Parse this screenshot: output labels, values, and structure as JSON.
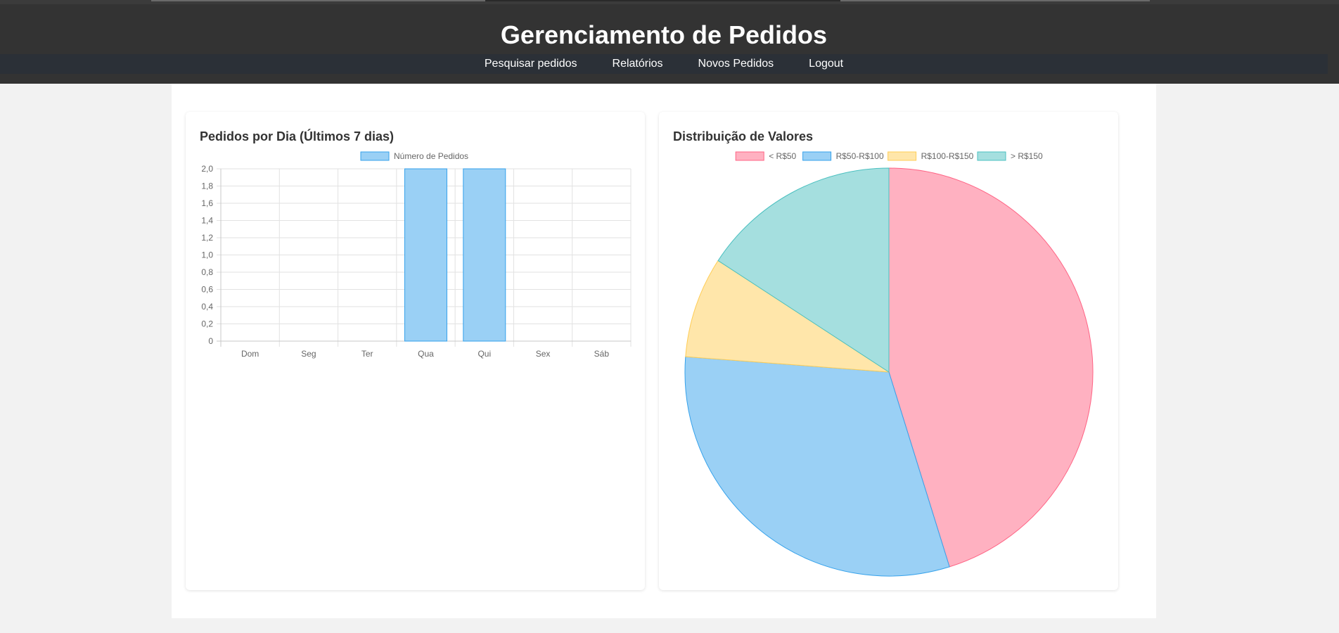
{
  "header": {
    "title": "Gerenciamento de Pedidos",
    "nav": [
      {
        "label": "Pesquisar pedidos"
      },
      {
        "label": "Relatórios"
      },
      {
        "label": "Novos Pedidos"
      },
      {
        "label": "Logout"
      }
    ]
  },
  "colors": {
    "header_bg": "#333333",
    "nav_bg": "#2b3037",
    "bar_fill": "#9ad0f5",
    "bar_stroke": "#36a2eb"
  },
  "chart_data": [
    {
      "type": "bar",
      "title": "Pedidos por Dia (Últimos 7 dias)",
      "categories": [
        "Dom",
        "Seg",
        "Ter",
        "Qua",
        "Qui",
        "Sex",
        "Sáb"
      ],
      "series": [
        {
          "name": "Número de Pedidos",
          "values": [
            0,
            0,
            0,
            2,
            2,
            0,
            0
          ]
        }
      ],
      "ylim": [
        0,
        2
      ],
      "yticks": [
        "0",
        "0,2",
        "0,4",
        "0,6",
        "0,8",
        "1,0",
        "1,2",
        "1,4",
        "1,6",
        "1,8",
        "2,0"
      ],
      "grid": true,
      "legend": "top"
    },
    {
      "type": "pie",
      "title": "Distribuição de Valores",
      "slices": [
        {
          "label": "< R$50",
          "value": 45.2,
          "fill": "#ffb1c1",
          "stroke": "#ff6384"
        },
        {
          "label": "R$50-R$100",
          "value": 31.0,
          "fill": "#9ad0f5",
          "stroke": "#36a2eb"
        },
        {
          "label": "R$100-R$150",
          "value": 8.0,
          "fill": "#ffe6aa",
          "stroke": "#ffcd56"
        },
        {
          "label": "> R$150",
          "value": 15.8,
          "fill": "#a5dfdf",
          "stroke": "#4bc0c0"
        }
      ],
      "legend": "top"
    }
  ]
}
